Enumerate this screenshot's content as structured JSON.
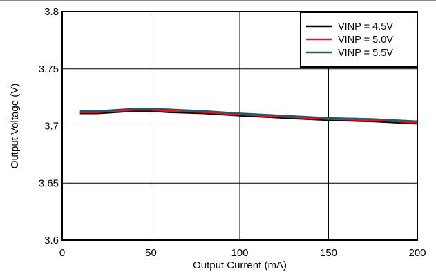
{
  "chart_data": {
    "type": "line",
    "title": "",
    "xlabel": "Output Current (mA)",
    "ylabel": "Output Voltage (V)",
    "xlim": [
      0,
      200
    ],
    "ylim": [
      3.6,
      3.8
    ],
    "xticks": [
      0,
      50,
      100,
      150,
      200
    ],
    "yticks": [
      3.6,
      3.65,
      3.7,
      3.75,
      3.8
    ],
    "xtick_labels": [
      "0",
      "50",
      "100",
      "150",
      "200"
    ],
    "ytick_labels": [
      "3.6",
      "3.65",
      "3.7",
      "3.75",
      "3.8"
    ],
    "grid": true,
    "legend_position": "top-right",
    "series": [
      {
        "name": "VINP = 4.5V",
        "color": "#000000",
        "x": [
          10,
          20,
          30,
          40,
          50,
          60,
          80,
          100,
          125,
          150,
          175,
          200
        ],
        "y": [
          3.711,
          3.711,
          3.712,
          3.713,
          3.713,
          3.712,
          3.711,
          3.709,
          3.707,
          3.705,
          3.704,
          3.702
        ]
      },
      {
        "name": "VINP = 5.0V",
        "color": "#e8141b",
        "x": [
          10,
          20,
          30,
          40,
          50,
          60,
          80,
          100,
          125,
          150,
          175,
          200
        ],
        "y": [
          3.712,
          3.712,
          3.713,
          3.714,
          3.714,
          3.713,
          3.712,
          3.71,
          3.708,
          3.706,
          3.705,
          3.703
        ]
      },
      {
        "name": "VINP = 5.5V",
        "color": "#215a6a",
        "x": [
          10,
          20,
          30,
          40,
          50,
          60,
          80,
          100,
          125,
          150,
          175,
          200
        ],
        "y": [
          3.713,
          3.713,
          3.714,
          3.715,
          3.715,
          3.7145,
          3.713,
          3.711,
          3.709,
          3.707,
          3.706,
          3.704
        ]
      }
    ]
  }
}
